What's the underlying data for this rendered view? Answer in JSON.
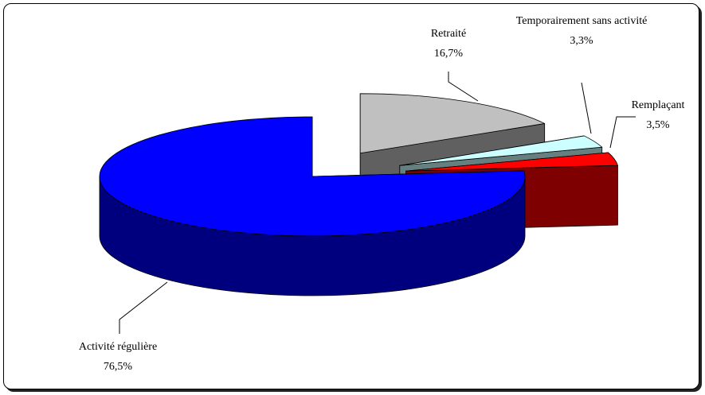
{
  "chart_data": {
    "type": "pie",
    "categories": [
      "Retraité",
      "Temporairement sans activité",
      "Remplaçant",
      "Activité régulière"
    ],
    "values": [
      16.7,
      3.3,
      3.5,
      76.5
    ],
    "value_labels": [
      "16,7%",
      "3,3%",
      "3,5%",
      "76,5%"
    ],
    "colors": [
      "#c0c0c0",
      "#ccffff",
      "#ff0000",
      "#0000ff"
    ]
  }
}
